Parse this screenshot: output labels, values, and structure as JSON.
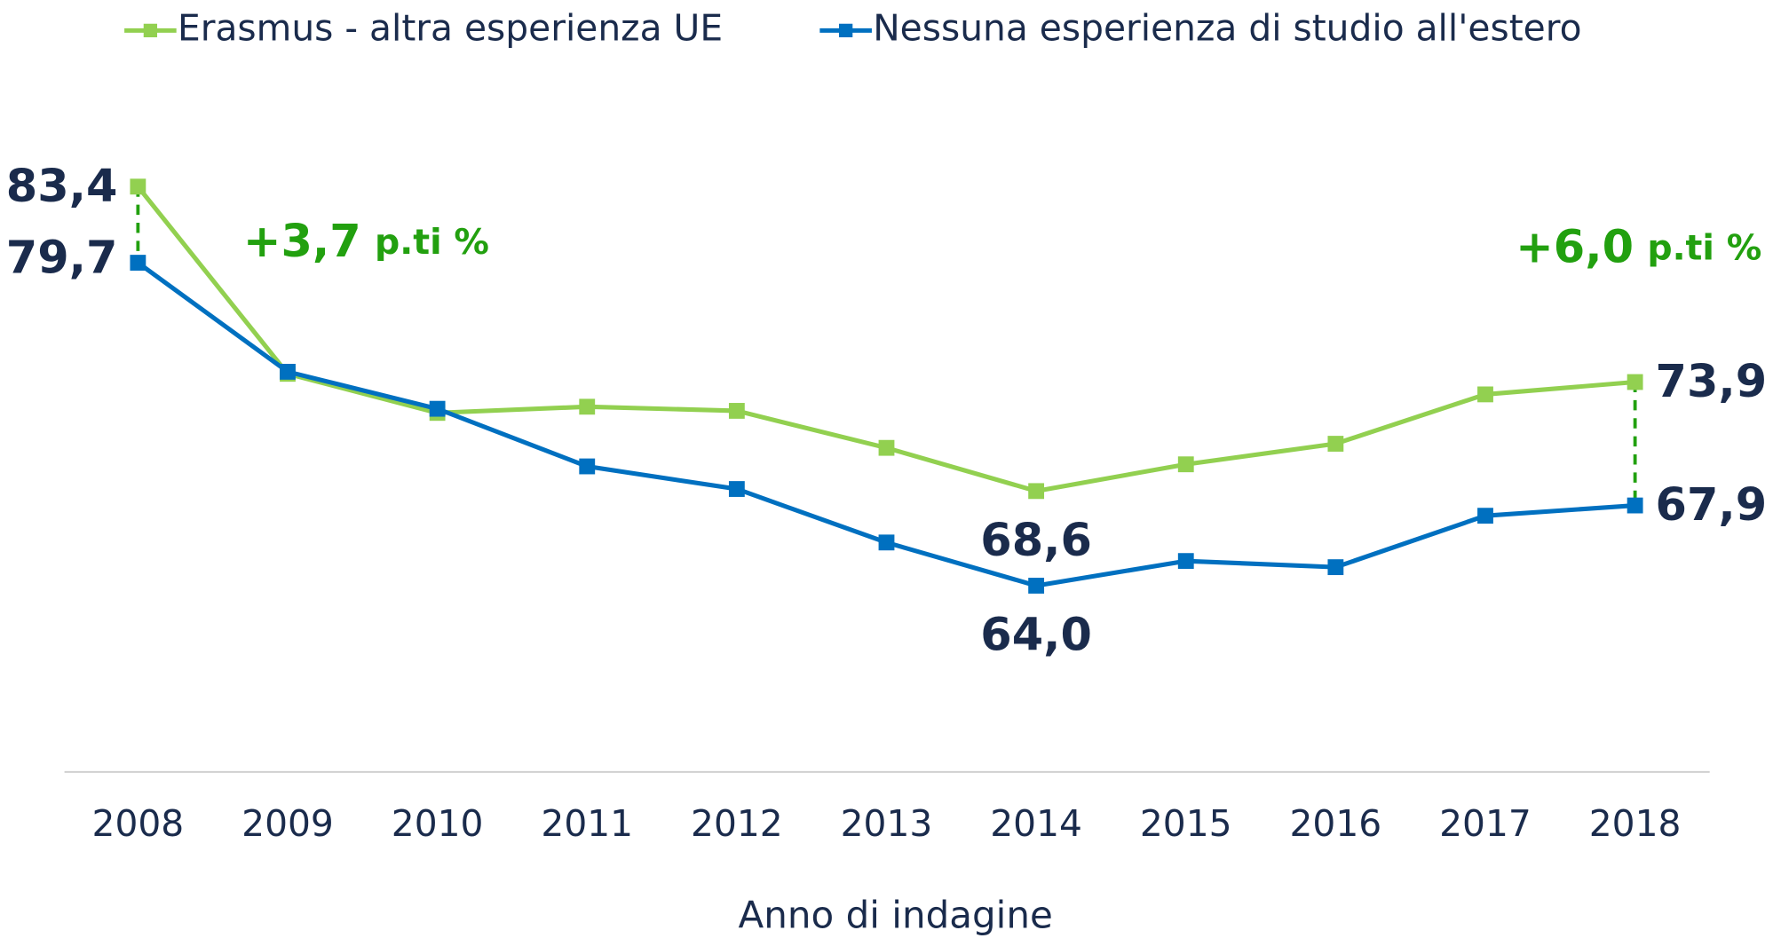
{
  "chart_data": {
    "type": "line",
    "x_label": "Anno di indagine",
    "categories": [
      "2008",
      "2009",
      "2010",
      "2011",
      "2012",
      "2013",
      "2014",
      "2015",
      "2016",
      "2017",
      "2018"
    ],
    "series": [
      {
        "name": "Erasmus - altra esperienza UE",
        "color": "#92d050",
        "values": [
          83.4,
          74.3,
          72.4,
          72.7,
          72.5,
          70.7,
          68.6,
          69.9,
          70.9,
          73.3,
          73.9
        ],
        "value_labels": [
          "83,4",
          null,
          null,
          null,
          null,
          null,
          "68,6",
          null,
          null,
          null,
          "73,9"
        ]
      },
      {
        "name": "Nessuna esperienza di studio all'estero",
        "color": "#0070c0",
        "values": [
          79.7,
          74.4,
          72.6,
          69.8,
          68.7,
          66.1,
          64.0,
          65.2,
          64.9,
          67.4,
          67.9
        ],
        "value_labels": [
          "79,7",
          null,
          null,
          null,
          null,
          null,
          "64,0",
          null,
          null,
          null,
          "67,9"
        ]
      }
    ],
    "annotations": [
      {
        "value": "+3,7",
        "unit": "p.ti %"
      },
      {
        "value": "+6,0",
        "unit": "p.ti %"
      }
    ],
    "annotation_color": "#22a00f",
    "ylim": [
      55,
      90
    ],
    "legend": "top"
  }
}
